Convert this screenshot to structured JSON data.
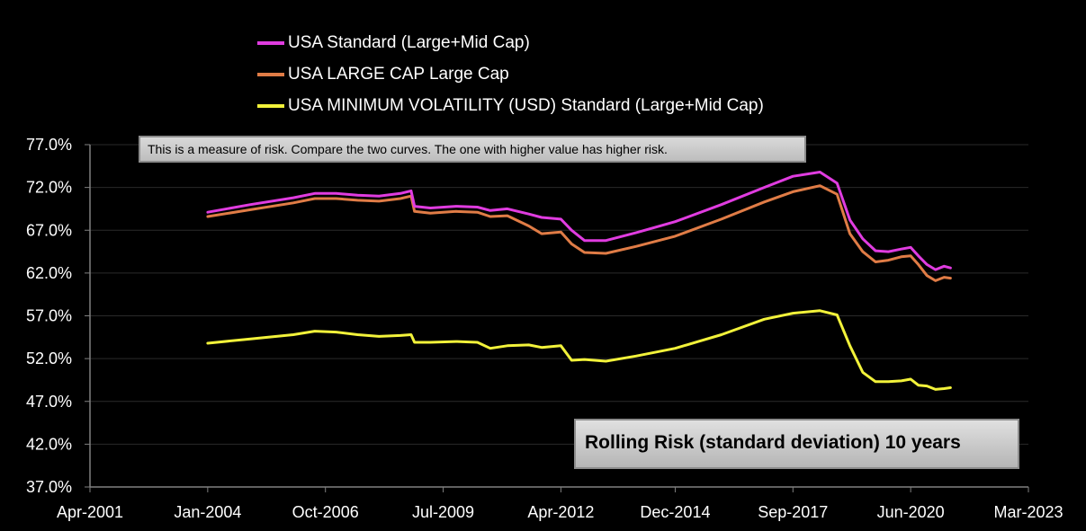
{
  "chart_data": {
    "type": "line",
    "title": "Rolling Risk (standard deviation) 10 years",
    "annotation": "This is a measure of risk.  Compare the two curves. The one with higher value has higher risk.",
    "xlabel": "",
    "ylabel": "",
    "ylim": [
      37.0,
      77.0
    ],
    "y_ticks": [
      "37.0%",
      "42.0%",
      "47.0%",
      "52.0%",
      "57.0%",
      "62.0%",
      "67.0%",
      "72.0%",
      "77.0%"
    ],
    "xlim": [
      2001.25,
      2023.17
    ],
    "x_ticks": [
      {
        "label": "Apr-2001",
        "x": 2001.25
      },
      {
        "label": "Jan-2004",
        "x": 2004.0
      },
      {
        "label": "Oct-2006",
        "x": 2006.75
      },
      {
        "label": "Jul-2009",
        "x": 2009.5
      },
      {
        "label": "Apr-2012",
        "x": 2012.25
      },
      {
        "label": "Dec-2014",
        "x": 2014.92
      },
      {
        "label": "Sep-2017",
        "x": 2017.67
      },
      {
        "label": "Jun-2020",
        "x": 2020.42
      },
      {
        "label": "Mar-2023",
        "x": 2023.17
      }
    ],
    "grid": "horizontal",
    "legend_position": "top",
    "series": [
      {
        "name": "USA Standard (Large+Mid Cap)",
        "color": "#e03ce0",
        "points": [
          [
            2004.0,
            69.1
          ],
          [
            2005.0,
            70.0
          ],
          [
            2006.0,
            70.8
          ],
          [
            2006.5,
            71.3
          ],
          [
            2007.0,
            71.3
          ],
          [
            2007.5,
            71.1
          ],
          [
            2008.0,
            71.0
          ],
          [
            2008.5,
            71.3
          ],
          [
            2008.75,
            71.6
          ],
          [
            2008.83,
            69.8
          ],
          [
            2009.2,
            69.6
          ],
          [
            2009.8,
            69.8
          ],
          [
            2010.3,
            69.7
          ],
          [
            2010.6,
            69.3
          ],
          [
            2011.0,
            69.5
          ],
          [
            2011.5,
            68.9
          ],
          [
            2011.8,
            68.5
          ],
          [
            2012.25,
            68.3
          ],
          [
            2012.5,
            67.0
          ],
          [
            2012.8,
            65.8
          ],
          [
            2013.3,
            65.8
          ],
          [
            2014.0,
            66.7
          ],
          [
            2014.92,
            68.0
          ],
          [
            2016.0,
            70.0
          ],
          [
            2017.0,
            72.0
          ],
          [
            2017.67,
            73.3
          ],
          [
            2018.3,
            73.8
          ],
          [
            2018.7,
            72.5
          ],
          [
            2019.0,
            68.2
          ],
          [
            2019.3,
            66.0
          ],
          [
            2019.6,
            64.6
          ],
          [
            2019.9,
            64.5
          ],
          [
            2020.2,
            64.8
          ],
          [
            2020.42,
            65.0
          ],
          [
            2020.6,
            64.0
          ],
          [
            2020.8,
            63.0
          ],
          [
            2021.0,
            62.4
          ],
          [
            2021.2,
            62.8
          ],
          [
            2021.35,
            62.6
          ]
        ]
      },
      {
        "name": "USA LARGE CAP Large Cap",
        "color": "#e07c46",
        "points": [
          [
            2004.0,
            68.6
          ],
          [
            2005.0,
            69.4
          ],
          [
            2006.0,
            70.2
          ],
          [
            2006.5,
            70.7
          ],
          [
            2007.0,
            70.7
          ],
          [
            2007.5,
            70.5
          ],
          [
            2008.0,
            70.4
          ],
          [
            2008.5,
            70.7
          ],
          [
            2008.75,
            71.0
          ],
          [
            2008.83,
            69.2
          ],
          [
            2009.2,
            69.0
          ],
          [
            2009.8,
            69.2
          ],
          [
            2010.3,
            69.1
          ],
          [
            2010.6,
            68.6
          ],
          [
            2011.0,
            68.7
          ],
          [
            2011.5,
            67.5
          ],
          [
            2011.8,
            66.6
          ],
          [
            2012.25,
            66.8
          ],
          [
            2012.5,
            65.4
          ],
          [
            2012.8,
            64.4
          ],
          [
            2013.3,
            64.3
          ],
          [
            2014.0,
            65.1
          ],
          [
            2014.92,
            66.3
          ],
          [
            2016.0,
            68.3
          ],
          [
            2017.0,
            70.3
          ],
          [
            2017.67,
            71.5
          ],
          [
            2018.3,
            72.2
          ],
          [
            2018.7,
            71.2
          ],
          [
            2019.0,
            66.6
          ],
          [
            2019.3,
            64.5
          ],
          [
            2019.6,
            63.3
          ],
          [
            2019.9,
            63.5
          ],
          [
            2020.2,
            63.9
          ],
          [
            2020.42,
            64.0
          ],
          [
            2020.6,
            63.0
          ],
          [
            2020.8,
            61.7
          ],
          [
            2021.0,
            61.1
          ],
          [
            2021.2,
            61.5
          ],
          [
            2021.35,
            61.4
          ]
        ]
      },
      {
        "name": "USA MINIMUM VOLATILITY (USD) Standard (Large+Mid Cap)",
        "color": "#f2f23a",
        "points": [
          [
            2004.0,
            53.8
          ],
          [
            2005.0,
            54.3
          ],
          [
            2006.0,
            54.8
          ],
          [
            2006.5,
            55.2
          ],
          [
            2007.0,
            55.1
          ],
          [
            2007.5,
            54.8
          ],
          [
            2008.0,
            54.6
          ],
          [
            2008.5,
            54.7
          ],
          [
            2008.75,
            54.8
          ],
          [
            2008.83,
            53.9
          ],
          [
            2009.2,
            53.9
          ],
          [
            2009.8,
            54.0
          ],
          [
            2010.3,
            53.9
          ],
          [
            2010.6,
            53.2
          ],
          [
            2011.0,
            53.5
          ],
          [
            2011.5,
            53.6
          ],
          [
            2011.8,
            53.3
          ],
          [
            2012.25,
            53.5
          ],
          [
            2012.5,
            51.8
          ],
          [
            2012.8,
            51.9
          ],
          [
            2013.3,
            51.7
          ],
          [
            2014.0,
            52.3
          ],
          [
            2014.92,
            53.2
          ],
          [
            2016.0,
            54.8
          ],
          [
            2017.0,
            56.6
          ],
          [
            2017.67,
            57.3
          ],
          [
            2018.3,
            57.6
          ],
          [
            2018.7,
            57.1
          ],
          [
            2019.0,
            53.5
          ],
          [
            2019.3,
            50.4
          ],
          [
            2019.6,
            49.3
          ],
          [
            2019.9,
            49.3
          ],
          [
            2020.2,
            49.4
          ],
          [
            2020.42,
            49.6
          ],
          [
            2020.6,
            48.9
          ],
          [
            2020.8,
            48.8
          ],
          [
            2021.0,
            48.4
          ],
          [
            2021.2,
            48.5
          ],
          [
            2021.35,
            48.6
          ]
        ]
      }
    ]
  }
}
